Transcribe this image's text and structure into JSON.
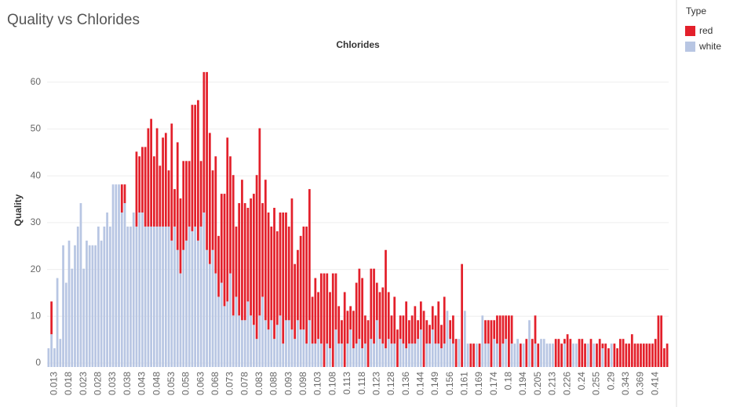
{
  "chart_data": {
    "type": "stacked_bar",
    "title": "Quality vs Chlorides",
    "subtitle": "Chlorides",
    "ylabel": "Quality",
    "legend_title": "Type",
    "legend": "right",
    "grid": true,
    "ylim": [
      0,
      67
    ],
    "yticks": [
      0,
      10,
      20,
      30,
      40,
      50,
      60
    ],
    "categories": [
      null,
      null,
      "0.013",
      null,
      null,
      null,
      null,
      "0.018",
      null,
      null,
      null,
      null,
      "0.023",
      null,
      null,
      null,
      null,
      "0.028",
      null,
      null,
      null,
      null,
      "0.033",
      null,
      null,
      null,
      null,
      "0.038",
      null,
      null,
      null,
      null,
      "0.043",
      null,
      null,
      null,
      null,
      "0.048",
      null,
      null,
      null,
      null,
      "0.053",
      null,
      null,
      null,
      null,
      "0.058",
      null,
      null,
      null,
      null,
      "0.063",
      null,
      null,
      null,
      null,
      "0.068",
      null,
      null,
      null,
      null,
      "0.073",
      null,
      null,
      null,
      null,
      "0.078",
      null,
      null,
      null,
      null,
      "0.083",
      null,
      null,
      null,
      null,
      "0.088",
      null,
      null,
      null,
      null,
      "0.093",
      null,
      null,
      null,
      null,
      "0.098",
      null,
      null,
      null,
      null,
      "0.103",
      null,
      null,
      null,
      null,
      "0.108",
      null,
      null,
      null,
      null,
      "0.113",
      null,
      null,
      null,
      null,
      "0.118",
      null,
      null,
      null,
      null,
      "0.123",
      null,
      null,
      null,
      null,
      "0.128",
      null,
      null,
      null,
      null,
      "0.136",
      null,
      null,
      null,
      null,
      "0.144",
      null,
      null,
      null,
      null,
      "0.149",
      null,
      null,
      null,
      null,
      "0.156",
      null,
      null,
      null,
      null,
      "0.161",
      null,
      null,
      null,
      null,
      "0.169",
      null,
      null,
      null,
      null,
      "0.174",
      null,
      null,
      null,
      null,
      "0.18",
      null,
      null,
      null,
      null,
      "0.194",
      null,
      null,
      null,
      null,
      "0.205",
      null,
      null,
      null,
      null,
      "0.213",
      null,
      null,
      null,
      null,
      "0.226",
      null,
      null,
      null,
      null,
      "0.24",
      null,
      null,
      null,
      null,
      "0.255",
      null,
      null,
      null,
      null,
      "0.29",
      null,
      null,
      null,
      null,
      "0.343",
      null,
      null,
      null,
      null,
      "0.369",
      null,
      null,
      null,
      null,
      "0.414",
      null,
      null,
      null,
      null
    ],
    "series": [
      {
        "name": "white",
        "color": "#b8c6e3",
        "values": [
          4,
          7,
          4,
          19,
          6,
          26,
          18,
          27,
          21,
          26,
          30,
          35,
          21,
          27,
          26,
          26,
          26,
          30,
          27,
          30,
          33,
          30,
          39,
          39,
          39,
          33,
          35,
          30,
          30,
          33,
          30,
          33,
          33,
          30,
          30,
          30,
          30,
          30,
          30,
          30,
          30,
          30,
          27,
          30,
          25,
          20,
          25,
          27,
          30,
          29,
          30,
          27,
          30,
          33,
          25,
          22,
          25,
          20,
          15,
          18,
          13,
          14,
          20,
          11,
          15,
          11,
          10,
          10,
          14,
          11,
          9,
          6,
          11,
          15,
          10,
          8,
          10,
          6,
          9,
          11,
          5,
          10,
          10,
          8,
          6,
          10,
          8,
          8,
          5,
          10,
          5,
          5,
          6,
          5,
          0,
          5,
          4,
          0,
          8,
          5,
          5,
          0,
          5,
          8,
          4,
          5,
          6,
          4,
          5,
          0,
          6,
          5,
          10,
          6,
          5,
          4,
          6,
          5,
          5,
          0,
          6,
          5,
          4,
          5,
          5,
          5,
          6,
          8,
          0,
          5,
          5,
          8,
          5,
          5,
          4,
          5,
          12,
          6,
          5,
          0,
          6,
          0,
          12,
          5,
          0,
          0,
          5,
          0,
          11,
          5,
          5,
          0,
          6,
          5,
          0,
          5,
          6,
          0,
          5,
          5,
          6,
          0,
          5,
          0,
          10,
          0,
          5,
          0,
          6,
          6,
          5,
          5,
          5,
          0,
          0,
          0,
          5,
          0,
          0,
          5,
          5,
          0,
          0,
          0,
          5,
          0,
          5,
          0,
          0,
          4,
          0,
          0,
          5,
          0,
          0,
          0,
          0,
          0,
          0,
          0,
          0,
          0,
          0,
          0,
          0,
          0,
          0,
          0,
          0,
          0,
          0,
          0
        ]
      },
      {
        "name": "red",
        "color": "#e3202b",
        "values": [
          0,
          7,
          0,
          0,
          0,
          0,
          0,
          0,
          0,
          0,
          0,
          0,
          0,
          0,
          0,
          0,
          0,
          0,
          0,
          0,
          0,
          0,
          0,
          0,
          0,
          6,
          4,
          0,
          0,
          0,
          16,
          12,
          14,
          17,
          21,
          23,
          15,
          21,
          13,
          19,
          20,
          12,
          25,
          8,
          23,
          16,
          19,
          17,
          14,
          27,
          26,
          30,
          14,
          30,
          38,
          28,
          17,
          25,
          13,
          19,
          24,
          35,
          25,
          30,
          15,
          24,
          30,
          25,
          20,
          25,
          28,
          35,
          40,
          20,
          30,
          25,
          20,
          28,
          20,
          22,
          28,
          23,
          20,
          28,
          16,
          15,
          20,
          22,
          25,
          28,
          10,
          14,
          10,
          15,
          20,
          15,
          12,
          20,
          12,
          8,
          5,
          16,
          7,
          5,
          8,
          13,
          15,
          15,
          6,
          10,
          15,
          16,
          8,
          10,
          12,
          21,
          10,
          6,
          10,
          8,
          5,
          6,
          10,
          5,
          6,
          8,
          4,
          6,
          12,
          5,
          4,
          5,
          6,
          9,
          5,
          10,
          0,
          4,
          6,
          6,
          0,
          22,
          0,
          0,
          5,
          5,
          0,
          5,
          0,
          5,
          5,
          10,
          4,
          6,
          11,
          6,
          5,
          11,
          6,
          0,
          0,
          5,
          0,
          6,
          0,
          6,
          6,
          5,
          0,
          0,
          0,
          0,
          0,
          6,
          6,
          5,
          1,
          7,
          6,
          0,
          0,
          6,
          6,
          5,
          0,
          6,
          0,
          5,
          6,
          1,
          5,
          4,
          0,
          5,
          4,
          6,
          6,
          5,
          5,
          7,
          5,
          5,
          5,
          5,
          5,
          5,
          5,
          6,
          11,
          11,
          4,
          5
        ]
      }
    ]
  }
}
